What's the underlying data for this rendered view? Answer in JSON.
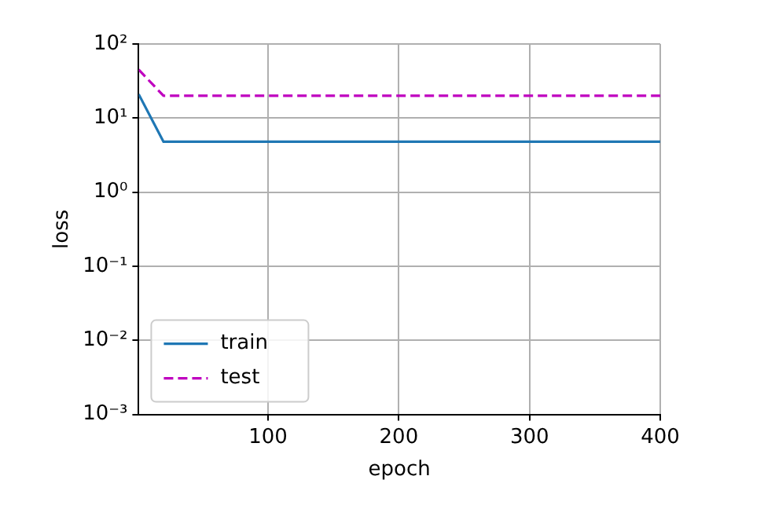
{
  "chart_data": {
    "type": "line",
    "xlabel": "epoch",
    "ylabel": "loss",
    "log": "y",
    "xlim": [
      1,
      400
    ],
    "xticks": [
      100,
      200,
      300,
      400
    ],
    "ylim": [
      0.001,
      100
    ],
    "yticks": [
      {
        "value": 0.001,
        "label": "10⁻³"
      },
      {
        "value": 0.01,
        "label": "10⁻²"
      },
      {
        "value": 0.1,
        "label": "10⁻¹"
      },
      {
        "value": 1,
        "label": "10⁰"
      },
      {
        "value": 10,
        "label": "10¹"
      },
      {
        "value": 100,
        "label": "10²"
      }
    ],
    "grid": true,
    "legend": "bottom left",
    "marker": "none",
    "series": [
      {
        "name": "train",
        "color": "#1f77b4",
        "line_style": "solid",
        "x": [
          1,
          20,
          400
        ],
        "values": [
          21,
          4.8,
          4.8
        ]
      },
      {
        "name": "test",
        "color": "#bf00bf",
        "line_style": "dashed",
        "x": [
          1,
          20,
          400
        ],
        "values": [
          45,
          20,
          20
        ]
      }
    ]
  }
}
